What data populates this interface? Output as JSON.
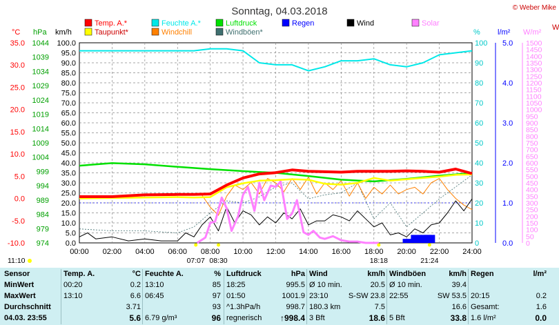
{
  "title": "Sonntag, 04.03.2018",
  "credit": "© Weber Mike",
  "legend": [
    {
      "label": "Temp. A.*",
      "color": "#ff0000"
    },
    {
      "label": "Feuchte A.*",
      "color": "#00e8e8"
    },
    {
      "label": "Luftdruck",
      "color": "#00e000"
    },
    {
      "label": "Regen",
      "color": "#0000ff"
    },
    {
      "label": "Wind",
      "color": "#000000"
    },
    {
      "label": "Solar",
      "color": "#ff80ff"
    },
    {
      "label": "Taupunkt*",
      "color": "#ffff00"
    },
    {
      "label": "Windchill",
      "color": "#ff8000"
    },
    {
      "label": "Windböen*",
      "color": "#407070"
    }
  ],
  "axis_units": {
    "temp": "°C",
    "pressure": "hPa",
    "wind": "km/h",
    "humidity": "%",
    "rain": "l/m²",
    "solar": "W/m²",
    "right_edge": "W"
  },
  "axis_ticks": {
    "temp": [
      "35.0",
      "30.0",
      "25.0",
      "20.0",
      "15.0",
      "10.0",
      "5.0",
      "0.0",
      "-5.0",
      "-10.0"
    ],
    "pressure": [
      "1044",
      "1039",
      "1034",
      "1029",
      "1024",
      "1019",
      "1014",
      "1009",
      "1004",
      "999",
      "994",
      "989",
      "984",
      "979",
      "974"
    ],
    "wind": [
      "100.0",
      "95.0",
      "90.0",
      "85.0",
      "80.0",
      "75.0",
      "70.0",
      "65.0",
      "60.0",
      "55.0",
      "50.0",
      "45.0",
      "40.0",
      "35.0",
      "30.0",
      "25.0",
      "20.0",
      "15.0",
      "10.0",
      "5.0",
      "0.0"
    ],
    "humidity": [
      "100",
      "90",
      "80",
      "70",
      "60",
      "50",
      "40",
      "30",
      "20",
      "10",
      "0"
    ],
    "rain": [
      "5.0",
      "4.0",
      "3.0",
      "2.0",
      "1.0",
      "0.0"
    ],
    "solar": [
      "1500",
      "1450",
      "1400",
      "1350",
      "1300",
      "1250",
      "1200",
      "1150",
      "1100",
      "1050",
      "1000",
      "950",
      "900",
      "850",
      "800",
      "750",
      "700",
      "650",
      "600",
      "550",
      "500",
      "450",
      "400",
      "350",
      "300",
      "250",
      "200",
      "150",
      "100",
      "50",
      "0"
    ],
    "time": [
      "00:00",
      "02:00",
      "04:00",
      "06:00",
      "08:00",
      "10:00",
      "12:00",
      "14:00",
      "16:00",
      "18:00",
      "20:00",
      "22:00",
      "24:00"
    ]
  },
  "sun_markers": [
    {
      "label": "11:10",
      "row": 1
    },
    {
      "label": "07:07",
      "row": 2
    },
    {
      "label": "08:30",
      "row": 2
    },
    {
      "label": "18:18",
      "row": 2
    },
    {
      "label": "21:24",
      "row": 2
    }
  ],
  "chart_data": {
    "type": "line",
    "x_unit": "hours",
    "xlim": [
      0,
      24
    ],
    "series": [
      {
        "name": "Temp. A.*",
        "axis": "°C",
        "x": [
          0,
          2,
          4,
          6,
          7,
          8,
          9,
          10,
          11,
          12,
          13,
          14,
          15,
          16,
          17,
          18,
          19,
          20,
          21,
          22,
          23,
          24
        ],
        "values": [
          0.4,
          0.4,
          0.8,
          0.9,
          0.9,
          1.0,
          3.0,
          4.6,
          5.5,
          5.8,
          6.4,
          6.1,
          6.0,
          5.9,
          6.1,
          6.1,
          6.1,
          6.2,
          6.1,
          5.9,
          6.6,
          5.6
        ]
      },
      {
        "name": "Feuchte A.*",
        "axis": "%",
        "x": [
          0,
          4,
          6,
          7,
          8,
          9,
          10,
          11,
          12,
          13,
          14,
          15,
          16,
          17,
          18,
          19,
          20,
          21,
          22,
          23,
          24
        ],
        "values": [
          96,
          96,
          96,
          96,
          97,
          97,
          96,
          90,
          89,
          89,
          86,
          88,
          91,
          91,
          92,
          89,
          88,
          90,
          94,
          95,
          96
        ]
      },
      {
        "name": "Luftdruck",
        "axis": "hPa",
        "x": [
          0,
          2,
          4,
          6,
          8,
          10,
          12,
          14,
          16,
          18,
          20,
          22,
          24
        ],
        "values": [
          1001.0,
          1001.9,
          1001.5,
          1000.6,
          999.8,
          999.1,
          998.5,
          997.4,
          996.1,
          995.5,
          996.4,
          997.5,
          998.4
        ]
      },
      {
        "name": "Taupunkt*",
        "axis": "°C",
        "x": [
          0,
          4,
          6,
          7,
          8,
          9,
          10,
          11,
          12,
          13,
          14,
          15,
          16,
          17,
          18,
          19,
          20,
          22,
          23,
          24
        ],
        "values": [
          0.0,
          0.2,
          0.3,
          0.2,
          0.3,
          2.5,
          3.4,
          4.0,
          4.1,
          4.3,
          4.2,
          3.3,
          3.1,
          3.5,
          4.6,
          4.0,
          4.3,
          4.9,
          5.3,
          5.4
        ]
      },
      {
        "name": "Windchill",
        "axis": "°C",
        "x": [
          0,
          7,
          7.5,
          8,
          8.5,
          9,
          9.5,
          10,
          10.5,
          11,
          11.5,
          12,
          12.5,
          13,
          13.5,
          14,
          14.5,
          15,
          15.5,
          16,
          16.5,
          17,
          17.5,
          18,
          18.5,
          19,
          19.5,
          20,
          20.5,
          21,
          21.5,
          22,
          22.5,
          23,
          23.5,
          24
        ],
        "values": [
          0.4,
          0.9,
          0.7,
          -2.0,
          -3.8,
          0.5,
          3.0,
          2.0,
          3.6,
          1.0,
          4.5,
          3.5,
          1.5,
          4.5,
          2.0,
          4.8,
          1.0,
          3.5,
          2.0,
          4.0,
          0.5,
          3.5,
          0.0,
          2.5,
          1.0,
          3.0,
          1.0,
          2.0,
          2.5,
          1.0,
          3.5,
          4.5,
          2.0,
          0.0,
          -1.5,
          -2.5
        ]
      },
      {
        "name": "Wind",
        "axis": "km/h",
        "x": [
          0,
          0.5,
          1,
          2,
          3,
          4,
          5,
          6,
          6.5,
          7,
          7.5,
          8,
          8.5,
          9,
          9.5,
          10,
          10.5,
          11,
          11.5,
          12,
          12.5,
          13,
          13.5,
          14,
          14.5,
          15,
          15.5,
          16,
          16.5,
          17,
          17.5,
          18,
          18.5,
          19,
          19.5,
          20,
          20.5,
          21,
          21.5,
          22,
          22.5,
          23,
          23.5,
          24
        ],
        "values": [
          3,
          5,
          2,
          3,
          1,
          2,
          1,
          1,
          5,
          3,
          9,
          13,
          6,
          18,
          10,
          16,
          14,
          9,
          13,
          10,
          15,
          12,
          17,
          9,
          11,
          11,
          14,
          13,
          11,
          16,
          12,
          8,
          10,
          4,
          5,
          3,
          7,
          5,
          9,
          10,
          15,
          21,
          16,
          22
        ]
      },
      {
        "name": "Windböen*",
        "axis": "km/h",
        "x": [
          0,
          2,
          4,
          6,
          7,
          8,
          9,
          10,
          11,
          12,
          13,
          14,
          15,
          16,
          17,
          18,
          19,
          20,
          21,
          22,
          23,
          24
        ],
        "values": [
          7,
          6,
          6,
          5,
          8,
          15,
          21,
          20,
          23,
          28,
          30,
          22,
          24,
          25,
          30,
          12,
          20,
          8,
          15,
          22,
          28,
          34
        ]
      },
      {
        "name": "Solar",
        "axis": "W/m²",
        "x": [
          7.2,
          7.7,
          8,
          8.3,
          8.7,
          9,
          9.3,
          9.7,
          10,
          10.3,
          10.7,
          11,
          11.3,
          11.7,
          12,
          12.3,
          12.7,
          13,
          13.3,
          13.7,
          14,
          14.3,
          14.7,
          15,
          15.5,
          16,
          16.5,
          17,
          17.5,
          18.3
        ],
        "values": [
          0,
          40,
          150,
          160,
          340,
          260,
          90,
          200,
          360,
          420,
          240,
          450,
          320,
          430,
          420,
          460,
          180,
          220,
          320,
          80,
          60,
          90,
          40,
          30,
          50,
          20,
          10,
          10,
          0,
          0
        ]
      },
      {
        "name": "Regen",
        "axis": "l/m²",
        "x": [
          20.1,
          20.6,
          21.2,
          21.4
        ],
        "values": [
          0.1,
          0.2,
          0.2,
          0.2
        ]
      }
    ]
  },
  "table": {
    "headers": [
      "Sensor",
      "Temp. A.",
      "°C",
      "Feuchte A.",
      "%",
      "Luftdruck",
      "hPa",
      "Wind",
      "km/h",
      "Windböen",
      "km/h",
      "Regen",
      "l/m²"
    ],
    "rows": [
      {
        "label": "MinWert",
        "cells": [
          "00:20",
          "0.2",
          "13:10",
          "85",
          "18:25",
          "995.5",
          "Ø 10 min.",
          "20.5",
          "Ø 10 min.",
          "39.4",
          "",
          ""
        ]
      },
      {
        "label": "MaxWert",
        "cells": [
          "13:10",
          "6.6",
          "06:45",
          "97",
          "01:50",
          "1001.9",
          "23:10",
          "S-SW 23.8",
          "22:55",
          "SW 53.5",
          "20:15",
          "0.2"
        ]
      },
      {
        "label": "Durchschnitt",
        "cells": [
          "",
          "3.71",
          "",
          "93",
          "^1.3hPa/h",
          "998.7",
          "180.3 km",
          "7.5",
          "",
          "16.6",
          "Gesamt:",
          "1.6"
        ]
      },
      {
        "label": "04.03. 23:55",
        "cells": [
          "",
          "5.6",
          "6.79 g/m³",
          "96",
          "regnerisch",
          "↑998.4",
          "3 Bft",
          "18.6",
          "5 Bft",
          "33.8",
          "1.6 l/m²",
          "0.0"
        ]
      }
    ]
  }
}
